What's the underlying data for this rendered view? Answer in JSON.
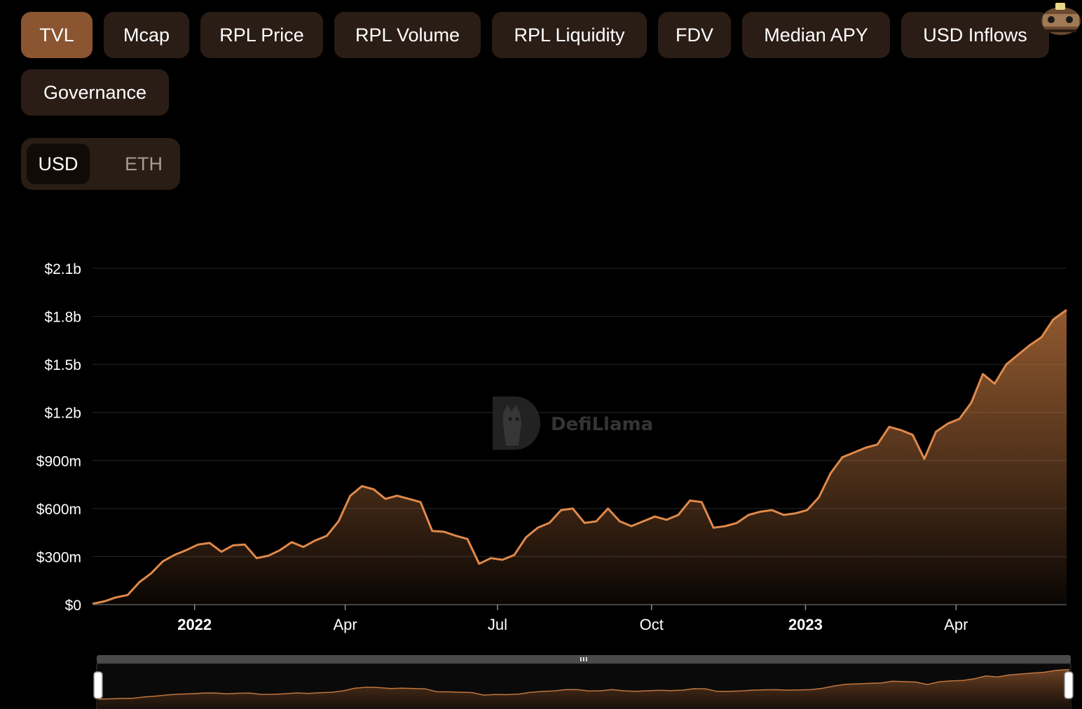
{
  "tabs": [
    {
      "label": "TVL",
      "active": true
    },
    {
      "label": "Mcap",
      "active": false
    },
    {
      "label": "RPL Price",
      "active": false
    },
    {
      "label": "RPL Volume",
      "active": false
    },
    {
      "label": "RPL Liquidity",
      "active": false
    },
    {
      "label": "FDV",
      "active": false
    },
    {
      "label": "Median APY",
      "active": false
    },
    {
      "label": "USD Inflows",
      "active": false
    },
    {
      "label": "Governance",
      "active": false
    }
  ],
  "currency": {
    "options": [
      "USD",
      "ETH"
    ],
    "selected": "USD"
  },
  "watermark": "DefiLlama",
  "mascot_icon": "llama-mascot-icon",
  "colors": {
    "accent": "#e0894a",
    "active_tab": "#8a5530",
    "pill_bg": "#2a1d15",
    "background": "#000000"
  },
  "chart_data": {
    "type": "area",
    "title": "",
    "xlabel": "",
    "ylabel": "",
    "x_start": "2021-11-01",
    "x_end": "2023-06-06",
    "x_ticks": [
      {
        "label": "2022",
        "date": "2022-01-01",
        "bold": true
      },
      {
        "label": "Apr",
        "date": "2022-04-01",
        "bold": false
      },
      {
        "label": "Jul",
        "date": "2022-07-01",
        "bold": false
      },
      {
        "label": "Oct",
        "date": "2022-10-01",
        "bold": false
      },
      {
        "label": "2023",
        "date": "2023-01-01",
        "bold": true
      },
      {
        "label": "Apr",
        "date": "2023-04-01",
        "bold": false
      }
    ],
    "y_ticks": [
      {
        "label": "$0",
        "value": 0
      },
      {
        "label": "$300m",
        "value": 300
      },
      {
        "label": "$600m",
        "value": 600
      },
      {
        "label": "$900m",
        "value": 900
      },
      {
        "label": "$1.2b",
        "value": 1200
      },
      {
        "label": "$1.5b",
        "value": 1500
      },
      {
        "label": "$1.8b",
        "value": 1800
      },
      {
        "label": "$2.1b",
        "value": 2100
      }
    ],
    "ylim": [
      0,
      2100
    ],
    "y_unit": "$m",
    "grid": true,
    "series": [
      {
        "name": "TVL",
        "color": "#e0894a",
        "points": [
          [
            "2021-11-01",
            5
          ],
          [
            "2021-11-08",
            20
          ],
          [
            "2021-11-15",
            45
          ],
          [
            "2021-11-22",
            60
          ],
          [
            "2021-11-29",
            140
          ],
          [
            "2021-12-06",
            195
          ],
          [
            "2021-12-13",
            270
          ],
          [
            "2021-12-20",
            310
          ],
          [
            "2021-12-27",
            340
          ],
          [
            "2022-01-03",
            375
          ],
          [
            "2022-01-10",
            385
          ],
          [
            "2022-01-17",
            330
          ],
          [
            "2022-01-24",
            370
          ],
          [
            "2022-01-31",
            375
          ],
          [
            "2022-02-07",
            290
          ],
          [
            "2022-02-14",
            305
          ],
          [
            "2022-02-21",
            340
          ],
          [
            "2022-02-28",
            390
          ],
          [
            "2022-03-07",
            360
          ],
          [
            "2022-03-14",
            400
          ],
          [
            "2022-03-21",
            430
          ],
          [
            "2022-03-28",
            520
          ],
          [
            "2022-04-04",
            680
          ],
          [
            "2022-04-11",
            740
          ],
          [
            "2022-04-18",
            720
          ],
          [
            "2022-04-25",
            660
          ],
          [
            "2022-05-02",
            680
          ],
          [
            "2022-05-09",
            660
          ],
          [
            "2022-05-16",
            640
          ],
          [
            "2022-05-23",
            460
          ],
          [
            "2022-05-30",
            455
          ],
          [
            "2022-06-06",
            430
          ],
          [
            "2022-06-13",
            410
          ],
          [
            "2022-06-20",
            255
          ],
          [
            "2022-06-27",
            290
          ],
          [
            "2022-07-04",
            280
          ],
          [
            "2022-07-11",
            310
          ],
          [
            "2022-07-18",
            420
          ],
          [
            "2022-07-25",
            480
          ],
          [
            "2022-08-01",
            510
          ],
          [
            "2022-08-08",
            590
          ],
          [
            "2022-08-15",
            600
          ],
          [
            "2022-08-22",
            510
          ],
          [
            "2022-08-29",
            520
          ],
          [
            "2022-09-05",
            600
          ],
          [
            "2022-09-12",
            520
          ],
          [
            "2022-09-19",
            490
          ],
          [
            "2022-09-26",
            520
          ],
          [
            "2022-10-03",
            550
          ],
          [
            "2022-10-10",
            530
          ],
          [
            "2022-10-17",
            560
          ],
          [
            "2022-10-24",
            650
          ],
          [
            "2022-10-31",
            640
          ],
          [
            "2022-11-07",
            480
          ],
          [
            "2022-11-14",
            490
          ],
          [
            "2022-11-21",
            510
          ],
          [
            "2022-11-28",
            560
          ],
          [
            "2022-12-05",
            580
          ],
          [
            "2022-12-12",
            590
          ],
          [
            "2022-12-19",
            560
          ],
          [
            "2022-12-26",
            570
          ],
          [
            "2023-01-02",
            590
          ],
          [
            "2023-01-09",
            670
          ],
          [
            "2023-01-16",
            820
          ],
          [
            "2023-01-23",
            920
          ],
          [
            "2023-01-30",
            950
          ],
          [
            "2023-02-06",
            980
          ],
          [
            "2023-02-13",
            1000
          ],
          [
            "2023-02-20",
            1110
          ],
          [
            "2023-02-27",
            1090
          ],
          [
            "2023-03-06",
            1060
          ],
          [
            "2023-03-13",
            910
          ],
          [
            "2023-03-20",
            1080
          ],
          [
            "2023-03-27",
            1130
          ],
          [
            "2023-04-03",
            1160
          ],
          [
            "2023-04-10",
            1260
          ],
          [
            "2023-04-17",
            1440
          ],
          [
            "2023-04-24",
            1380
          ],
          [
            "2023-05-01",
            1500
          ],
          [
            "2023-05-08",
            1560
          ],
          [
            "2023-05-15",
            1620
          ],
          [
            "2023-05-22",
            1670
          ],
          [
            "2023-05-29",
            1780
          ],
          [
            "2023-06-06",
            1840
          ]
        ]
      }
    ]
  }
}
